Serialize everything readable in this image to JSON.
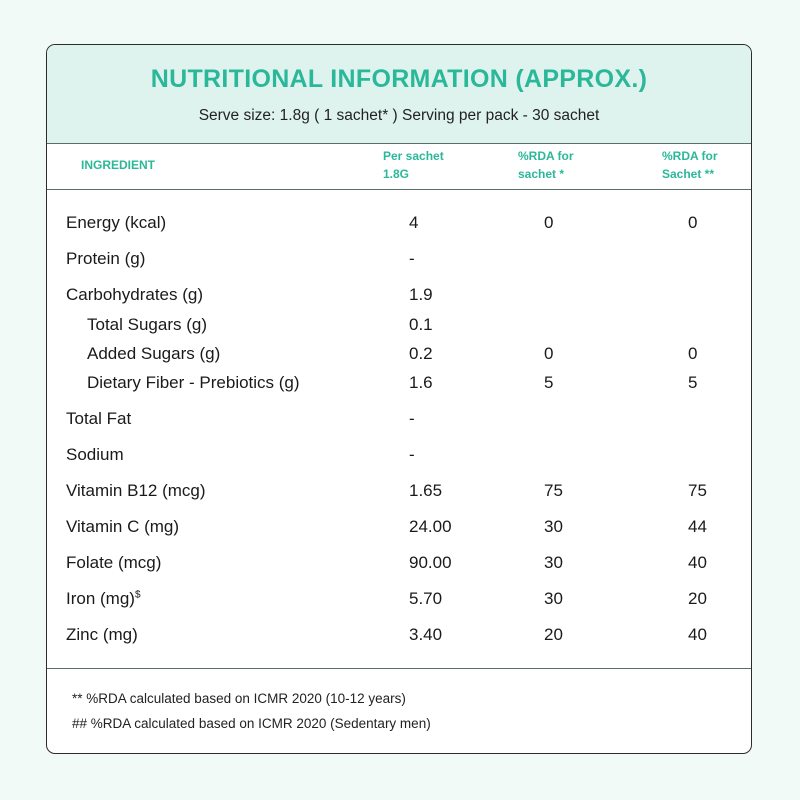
{
  "header": {
    "title": "NUTRITIONAL INFORMATION (APPROX.)",
    "subtitle": "Serve size: 1.8g ( 1 sachet* ) Serving per pack - 30 sachet"
  },
  "columns": {
    "ingredient": "INGREDIENT",
    "per_sachet": "Per sachet\n1.8G",
    "rda_sachet": "%RDA for\nsachet *",
    "rda_sachet2": "%RDA for\nSachet **"
  },
  "rows": [
    {
      "name": "Energy (kcal)",
      "per": "4",
      "rda1": "0",
      "rda2": "0"
    },
    {
      "name": "Protein (g)",
      "per": "-",
      "rda1": "",
      "rda2": ""
    },
    {
      "name": "Carbohydrates (g)",
      "per": "1.9",
      "rda1": "",
      "rda2": ""
    },
    {
      "name": "Total Sugars (g)",
      "per": "0.1",
      "rda1": "",
      "rda2": ""
    },
    {
      "name": "Added Sugars (g)",
      "per": "0.2",
      "rda1": "0",
      "rda2": "0"
    },
    {
      "name": "Dietary Fiber - Prebiotics (g)",
      "per": "1.6",
      "rda1": "5",
      "rda2": "5"
    },
    {
      "name": "Total Fat",
      "per": "-",
      "rda1": "",
      "rda2": ""
    },
    {
      "name": "Sodium",
      "per": "-",
      "rda1": "",
      "rda2": ""
    },
    {
      "name": "Vitamin B12 (mcg)",
      "per": "1.65",
      "rda1": "75",
      "rda2": "75"
    },
    {
      "name": "Vitamin C (mg)",
      "per": "24.00",
      "rda1": "30",
      "rda2": "44"
    },
    {
      "name": "Folate (mcg)",
      "per": "90.00",
      "rda1": "30",
      "rda2": "40"
    },
    {
      "name": "Iron (mg)",
      "sup": "$",
      "per": "5.70",
      "rda1": "30",
      "rda2": "20"
    },
    {
      "name": "Zinc (mg)",
      "per": "3.40",
      "rda1": "20",
      "rda2": "40"
    }
  ],
  "footer": {
    "note1": "** %RDA calculated based on ICMR 2020 (10-12 years)",
    "note2": "## %RDA calculated based on ICMR 2020 (Sedentary men)"
  }
}
